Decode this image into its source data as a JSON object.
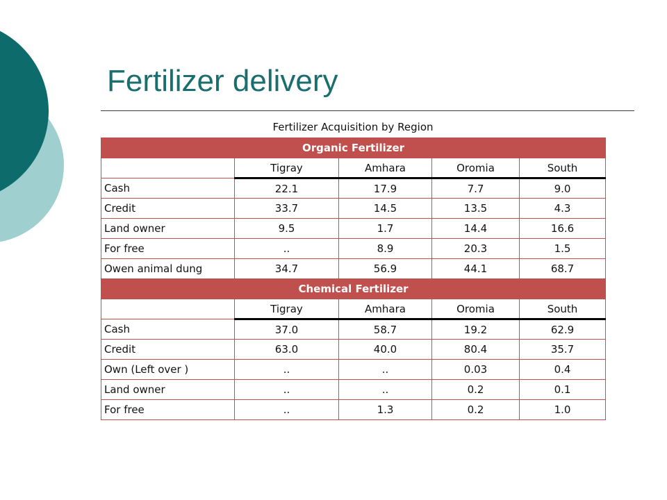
{
  "slide": {
    "title": "Fertilizer delivery",
    "table_caption": "Fertilizer Acquisition by Region"
  },
  "colors": {
    "teal_dark": "#0e6b6b",
    "teal_light": "#9fcfcf",
    "section_band": "#c0504d",
    "title_text": "#1a6e6e"
  },
  "columns": [
    "Tigray",
    "Amhara",
    "Oromia",
    "South"
  ],
  "sections": [
    {
      "title": "Organic Fertilizer",
      "columns": [
        "Tigray",
        "Amhara",
        "Oromia",
        "South"
      ],
      "rows": [
        {
          "label": "Cash",
          "values": [
            "22.1",
            "17.9",
            "7.7",
            "9.0"
          ]
        },
        {
          "label": "Credit",
          "values": [
            "33.7",
            "14.5",
            "13.5",
            "4.3"
          ]
        },
        {
          "label": "Land owner",
          "values": [
            "9.5",
            "1.7",
            "14.4",
            "16.6"
          ]
        },
        {
          "label": "For free",
          "values": [
            "..",
            "8.9",
            "20.3",
            "1.5"
          ]
        },
        {
          "label": "Owen animal dung",
          "values": [
            "34.7",
            "56.9",
            "44.1",
            "68.7"
          ]
        }
      ]
    },
    {
      "title": "Chemical Fertilizer",
      "columns": [
        "Tigray",
        "Amhara",
        "Oromia",
        "South"
      ],
      "rows": [
        {
          "label": "Cash",
          "values": [
            "37.0",
            "58.7",
            "19.2",
            "62.9"
          ]
        },
        {
          "label": "Credit",
          "values": [
            "63.0",
            "40.0",
            "80.4",
            "35.7"
          ]
        },
        {
          "label": "Own (Left over )",
          "values": [
            "..",
            "..",
            "0.03",
            "0.4"
          ]
        },
        {
          "label": "Land owner",
          "values": [
            "..",
            "..",
            "0.2",
            "0.1"
          ]
        },
        {
          "label": "For free",
          "values": [
            "..",
            "1.3",
            "0.2",
            "1.0"
          ]
        }
      ]
    }
  ]
}
